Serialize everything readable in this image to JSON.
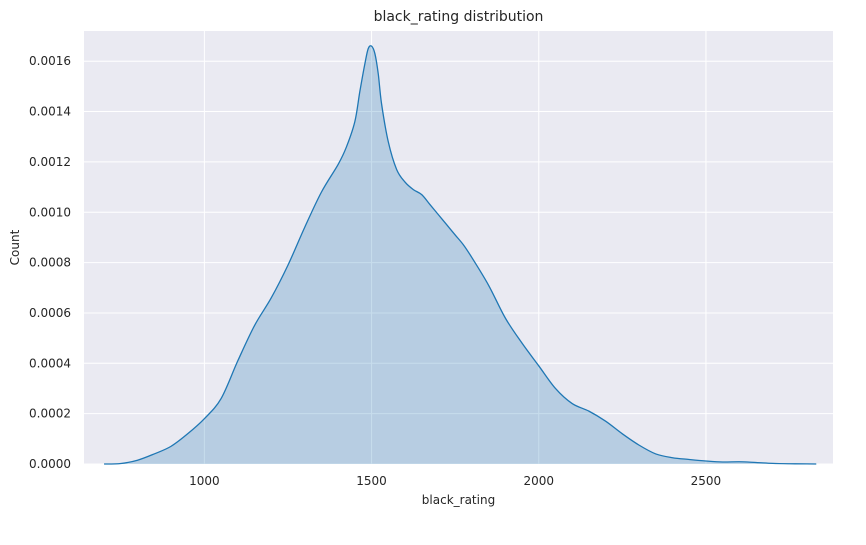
{
  "chart_data": {
    "type": "area",
    "title": "black_rating distribution",
    "xlabel": "black_rating",
    "ylabel": "Count",
    "xlim": [
      640,
      2880
    ],
    "ylim": [
      0,
      0.00172
    ],
    "xticks": [
      1000,
      1500,
      2000,
      2500
    ],
    "yticks": [
      0.0,
      0.0002,
      0.0004,
      0.0006,
      0.0008,
      0.001,
      0.0012,
      0.0014,
      0.0016
    ],
    "ytick_labels": [
      "0.0000",
      "0.0002",
      "0.0004",
      "0.0006",
      "0.0008",
      "0.0010",
      "0.0012",
      "0.0014",
      "0.0016"
    ],
    "grid": true,
    "colors": {
      "line": "#1f77b4",
      "fill": "#1f77b4",
      "background": "#eaeaf2",
      "grid": "#ffffff"
    },
    "series": [
      {
        "x": [
          700,
          750,
          800,
          850,
          900,
          950,
          1000,
          1050,
          1100,
          1150,
          1200,
          1250,
          1300,
          1350,
          1400,
          1425,
          1450,
          1465,
          1480,
          1490,
          1500,
          1510,
          1520,
          1530,
          1550,
          1575,
          1600,
          1625,
          1650,
          1675,
          1700,
          1725,
          1750,
          1775,
          1800,
          1850,
          1900,
          1950,
          2000,
          2050,
          2100,
          2150,
          2200,
          2250,
          2300,
          2350,
          2400,
          2450,
          2500,
          2550,
          2600,
          2650,
          2700,
          2750,
          2800,
          2830
        ],
        "y": [
          0.0,
          2e-06,
          1.5e-05,
          4e-05,
          7e-05,
          0.00012,
          0.00018,
          0.00026,
          0.00041,
          0.00055,
          0.00066,
          0.00079,
          0.00094,
          0.00108,
          0.00119,
          0.00126,
          0.00136,
          0.00148,
          0.00159,
          0.00165,
          0.00166,
          0.00163,
          0.00155,
          0.00143,
          0.00128,
          0.00117,
          0.00112,
          0.00109,
          0.00107,
          0.00103,
          0.00099,
          0.00095,
          0.00091,
          0.00087,
          0.00082,
          0.00071,
          0.00058,
          0.00048,
          0.00039,
          0.0003,
          0.00024,
          0.00021,
          0.00017,
          0.00012,
          7.5e-05,
          4e-05,
          2.5e-05,
          1.8e-05,
          1.2e-05,
          8e-06,
          9e-06,
          6e-06,
          2.5e-06,
          1e-06,
          4e-07,
          0.0
        ]
      }
    ]
  }
}
